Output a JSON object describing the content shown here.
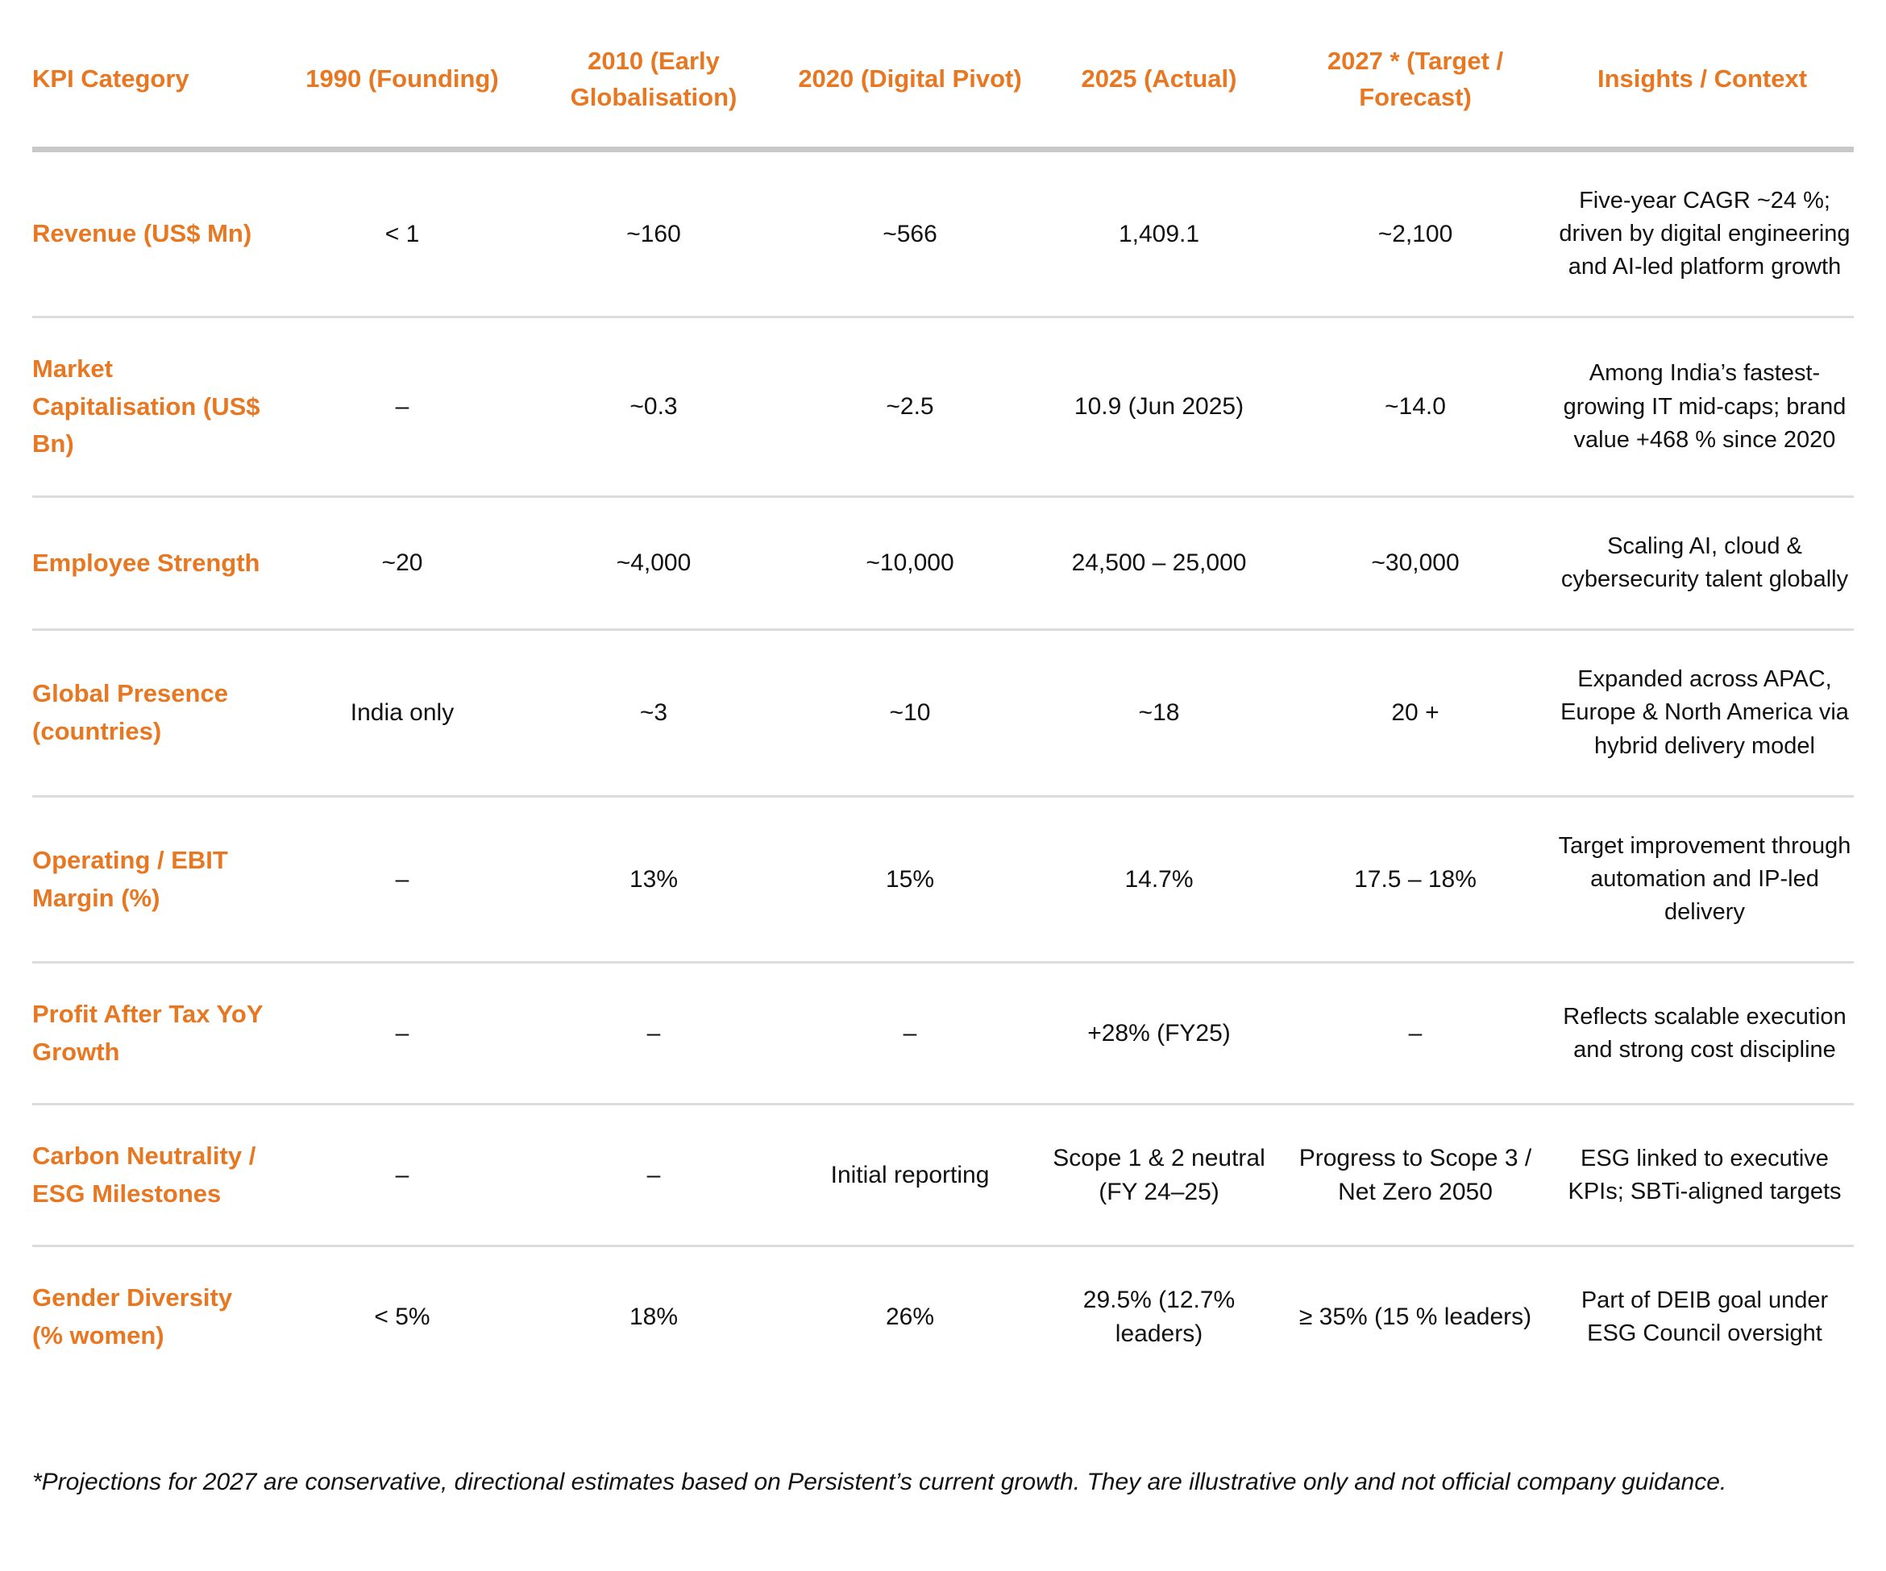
{
  "colors": {
    "accent": "#E87722",
    "text": "#111111",
    "divider": "#DCDCDC",
    "divider_strong": "#C9C9C9",
    "background": "#FFFFFF"
  },
  "table": {
    "columns": [
      "KPI Category",
      "1990 (Founding)",
      "2010 (Early Globalisation)",
      "2020 (Digital Pivot)",
      "2025 (Actual)",
      "2027 * (Target / Forecast)",
      "Insights / Context"
    ],
    "rows": [
      {
        "category": "Revenue (US$ Mn)",
        "values": [
          "< 1",
          "~160",
          "~566",
          "1,409.1",
          "~2,100"
        ],
        "insight": "Five-year CAGR ~24 %; driven by digital engineering and AI-led platform growth"
      },
      {
        "category": "Market Capitalisation (US$ Bn)",
        "values": [
          "–",
          "~0.3",
          "~2.5",
          "10.9 (Jun 2025)",
          "~14.0"
        ],
        "insight": "Among India’s fastest-growing IT mid-caps; brand value +468 % since 2020"
      },
      {
        "category": "Employee Strength",
        "values": [
          "~20",
          "~4,000",
          "~10,000",
          "24,500 – 25,000",
          "~30,000"
        ],
        "insight": "Scaling AI, cloud & cybersecurity talent globally"
      },
      {
        "category": "Global Presence (countries)",
        "values": [
          "India only",
          "~3",
          "~10",
          "~18",
          "20 +"
        ],
        "insight": "Expanded across APAC, Europe & North America via hybrid delivery model"
      },
      {
        "category": "Operating / EBIT Margin (%)",
        "values": [
          "–",
          "13%",
          "15%",
          "14.7%",
          "17.5 – 18%"
        ],
        "insight": "Target improvement through automation and IP-led delivery"
      },
      {
        "category": "Profit After Tax YoY Growth",
        "values": [
          "–",
          "–",
          "–",
          "+28% (FY25)",
          "–"
        ],
        "insight": "Reflects scalable execution and strong cost discipline"
      },
      {
        "category": "Carbon Neutrality / ESG Milestones",
        "values": [
          "–",
          "–",
          "Initial reporting",
          "Scope 1 & 2 neutral (FY 24–25)",
          "Progress to Scope 3 / Net Zero 2050"
        ],
        "insight": "ESG linked to executive KPIs; SBTi-aligned targets"
      },
      {
        "category": "Gender Diversity (% women)",
        "values": [
          "< 5%",
          "18%",
          "26%",
          "29.5% (12.7% leaders)",
          "≥ 35% (15 % leaders)"
        ],
        "insight": "Part of DEIB goal under ESG Council oversight"
      }
    ]
  },
  "footnote": "*Projections for 2027 are conservative, directional estimates based on Persistent’s current growth. They are illustrative only and not official company guidance."
}
